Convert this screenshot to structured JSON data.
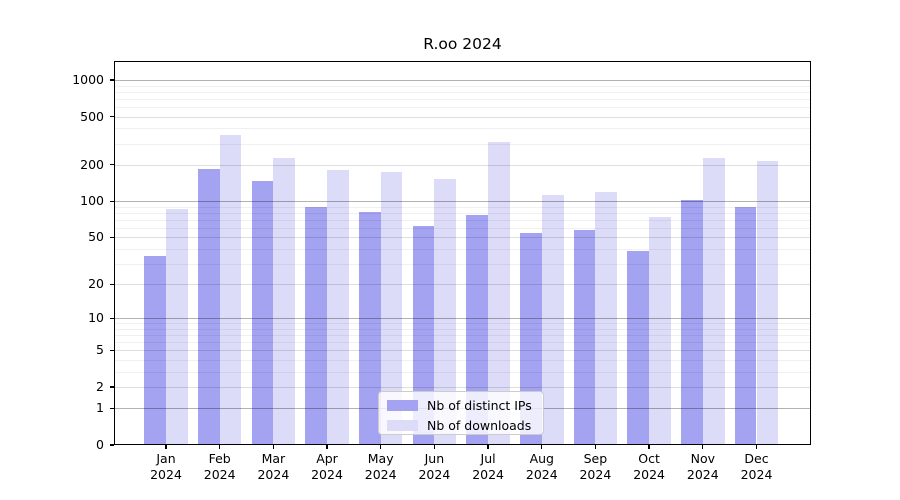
{
  "chart_data": {
    "type": "bar",
    "title": "R.oo 2024",
    "categories": [
      "Jan 2024",
      "Feb 2024",
      "Mar 2024",
      "Apr 2024",
      "May 2024",
      "Jun 2024",
      "Jul 2024",
      "Aug 2024",
      "Sep 2024",
      "Oct 2024",
      "Nov 2024",
      "Dec 2024"
    ],
    "series": [
      {
        "name": "Nb of distinct IPs",
        "color": "#a3a3f2",
        "values": [
          35,
          186,
          148,
          89,
          81,
          62,
          77,
          54,
          58,
          38,
          103,
          90
        ]
      },
      {
        "name": "Nb of downloads",
        "color": "#dcdcf9",
        "values": [
          86,
          352,
          226,
          181,
          175,
          153,
          309,
          112,
          120,
          74,
          226,
          215
        ]
      }
    ],
    "yticks": [
      0,
      1,
      2,
      5,
      10,
      20,
      50,
      100,
      200,
      500,
      1000
    ],
    "minor_gridlines": [
      3,
      4,
      6,
      7,
      8,
      9,
      30,
      40,
      60,
      70,
      80,
      90,
      300,
      400,
      600,
      700,
      800,
      900
    ],
    "pow10_gridlines": [
      1,
      10,
      100,
      1000
    ],
    "scale": "log10(1+y)",
    "ylim": [
      0,
      1430
    ],
    "xlabel": "",
    "ylabel": "",
    "grid": true,
    "legend_position": "lower center"
  }
}
